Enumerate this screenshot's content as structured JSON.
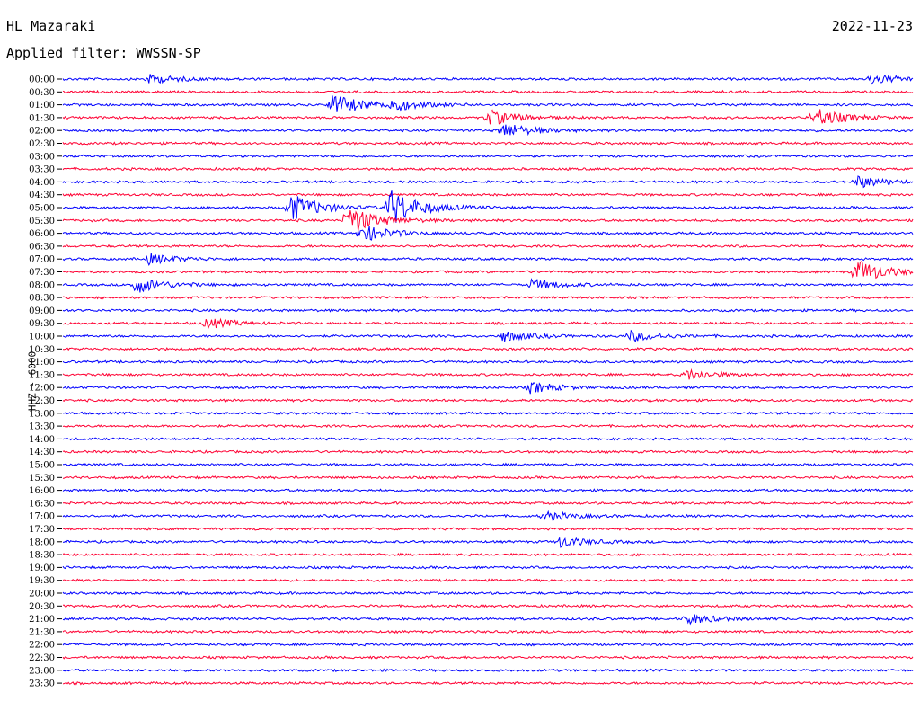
{
  "header": {
    "station": "HL Mazaraki",
    "date": "2022-11-23",
    "filter": "Applied filter: WWSSN-SP"
  },
  "channel_label": "HHZ - 6000",
  "colors": {
    "trace_a": "#0000ff",
    "trace_b": "#ff0033",
    "axis": "#000000"
  },
  "chart_data": {
    "type": "helicorder",
    "title": "HL Mazaraki",
    "ylabel": "HHZ - 6000",
    "xlabel": "",
    "row_minutes": 30,
    "tick_labels": [
      "00:00",
      "00:30",
      "01:00",
      "01:30",
      "02:00",
      "02:30",
      "03:00",
      "03:30",
      "04:00",
      "04:30",
      "05:00",
      "05:30",
      "06:00",
      "06:30",
      "07:00",
      "07:30",
      "08:00",
      "08:30",
      "09:00",
      "09:30",
      "10:00",
      "10:30",
      "11:00",
      "11:30",
      "12:00",
      "12:30",
      "13:00",
      "13:30",
      "14:00",
      "14:30",
      "15:00",
      "15:30",
      "16:00",
      "16:30",
      "17:00",
      "17:30",
      "18:00",
      "18:30",
      "19:00",
      "19:30",
      "20:00",
      "20:30",
      "21:00",
      "21:30",
      "22:00",
      "22:30",
      "23:00",
      "23:30"
    ],
    "series_colors": [
      "#0000ff",
      "#ff0033"
    ],
    "events": [
      {
        "row": 0,
        "minute": 3.0,
        "amp": 5
      },
      {
        "row": 0,
        "minute": 28.5,
        "amp": 6
      },
      {
        "row": 2,
        "minute": 9.5,
        "amp": 12
      },
      {
        "row": 2,
        "minute": 11.5,
        "amp": 7
      },
      {
        "row": 3,
        "minute": 15.0,
        "amp": 9
      },
      {
        "row": 3,
        "minute": 26.5,
        "amp": 11
      },
      {
        "row": 4,
        "minute": 15.5,
        "amp": 9
      },
      {
        "row": 8,
        "minute": 28.0,
        "amp": 7
      },
      {
        "row": 10,
        "minute": 8.0,
        "amp": 16
      },
      {
        "row": 10,
        "minute": 11.5,
        "amp": 22
      },
      {
        "row": 11,
        "minute": 10.0,
        "amp": 18
      },
      {
        "row": 12,
        "minute": 10.5,
        "amp": 10
      },
      {
        "row": 14,
        "minute": 3.0,
        "amp": 6
      },
      {
        "row": 15,
        "minute": 28.0,
        "amp": 14
      },
      {
        "row": 16,
        "minute": 2.5,
        "amp": 10
      },
      {
        "row": 16,
        "minute": 16.5,
        "amp": 6
      },
      {
        "row": 19,
        "minute": 5.0,
        "amp": 6
      },
      {
        "row": 20,
        "minute": 15.5,
        "amp": 6
      },
      {
        "row": 20,
        "minute": 20.0,
        "amp": 6
      },
      {
        "row": 23,
        "minute": 22.0,
        "amp": 6
      },
      {
        "row": 24,
        "minute": 16.5,
        "amp": 6
      },
      {
        "row": 34,
        "minute": 17.0,
        "amp": 5
      },
      {
        "row": 36,
        "minute": 17.5,
        "amp": 6
      },
      {
        "row": 42,
        "minute": 22.0,
        "amp": 6
      }
    ]
  }
}
